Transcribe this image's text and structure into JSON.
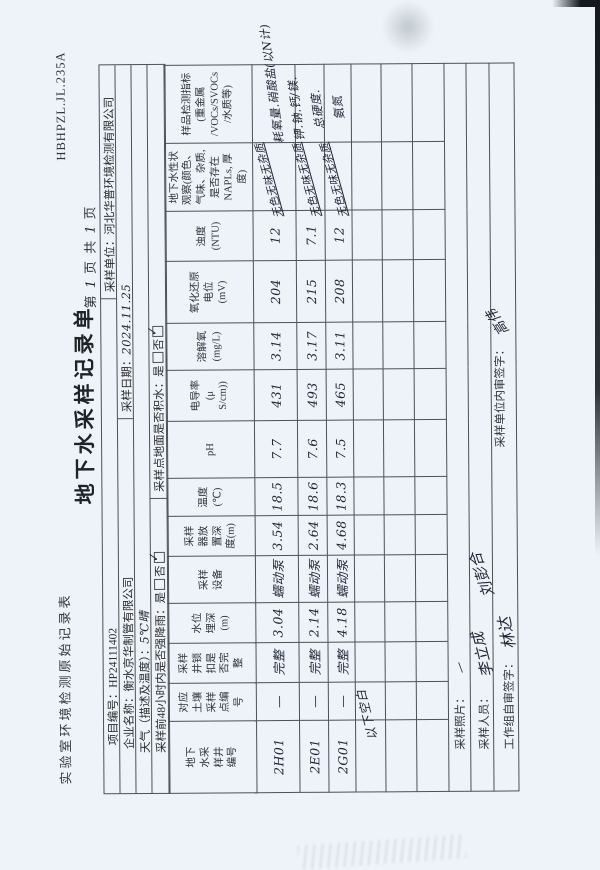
{
  "header": {
    "form_name": "实验室环境检测原始记录表",
    "doc_code": "HBHPZL.JL.235A",
    "title": "地下水采样记录单",
    "page_pre": "第",
    "page_current": "1",
    "page_mid": "页 共",
    "page_total": "1",
    "page_suf": "页"
  },
  "info": {
    "project_no_label": "项目编号：",
    "project_no": "HP24111402",
    "sampling_org_label": "采样单位：",
    "sampling_org": "河北华普环境检测有限公司",
    "company_label": "企业名称：",
    "company": "衡水京华制管有限公司",
    "date_label": "采样日期：",
    "date": "2024.11.25",
    "weather_label": "天气（描述及温度）：",
    "weather": "5℃晴",
    "rain_label": "采样前48小时内是否强降雨：",
    "ponding_label": "采样点地面是否积水：",
    "yes_label": "是",
    "no_label": "否",
    "check_mark": "✓"
  },
  "table": {
    "headers": [
      "地下\n水采\n样井\n编号",
      "对应\n土壤\n采样\n点编\n号",
      "采样\n井锁\n扣是\n否完\n整",
      "水位\n埋深\n(m)",
      "采样\n设备",
      "采样\n器放\n置深\n度(m)",
      "温度\n(℃)",
      "pH",
      "电导率\n(μ\nS/cm))",
      "溶解氧\n(mg/L)",
      "氧化还原\n电位\n(mV)",
      "浊度\n(NTU)",
      "地下水性状\n观察(颜色、\n气味、杂质,\n是否存在\nNAPLs, 厚\n度)",
      "样品检测指标\n(重金属\n/VOCs/SVOCs\n/水质等)"
    ],
    "rows": [
      [
        "2H01",
        "—",
        "完整",
        "3.04",
        "蠕动泵",
        "3.54",
        "18.5",
        "7.7",
        "431",
        "3.14",
        "204",
        "12",
        "",
        ""
      ],
      [
        "2E01",
        "—",
        "完整",
        "2.14",
        "蠕动泵",
        "2.64",
        "18.6",
        "7.6",
        "493",
        "3.17",
        "215",
        "7.1",
        "",
        ""
      ],
      [
        "2G01",
        "—",
        "完整",
        "4.18",
        "蠕动泵",
        "4.68",
        "18.3",
        "7.5",
        "465",
        "3.11",
        "208",
        "12",
        "",
        ""
      ],
      [
        "",
        "",
        "",
        "",
        "",
        "",
        "",
        "",
        "",
        "",
        "",
        "",
        "",
        ""
      ],
      [
        "",
        "",
        "",
        "",
        "",
        "",
        "",
        "",
        "",
        "",
        "",
        "",
        "",
        ""
      ],
      [
        "",
        "",
        "",
        "",
        "",
        "",
        "",
        "",
        "",
        "",
        "",
        "",
        "",
        ""
      ]
    ],
    "observations": [
      "无色无味无杂质",
      "无色无味无杂质",
      "无色无味无杂质"
    ],
    "indicator_lines": [
      "耗氧量.硝酸盐(以N计)",
      "钾.钠.钙/镁.",
      "总硬度.",
      "氨氮"
    ],
    "blank_note": "以下空白"
  },
  "footer": {
    "photo_label": "采样照片：",
    "photo_value": "—",
    "samplers_label": "采样人员：",
    "sampler_sig_1": "李立成",
    "sampler_sig_2": "刘彭合",
    "team_sign_label": "工作组自审签字：",
    "team_sig": "林达",
    "internal_sign_label": "采样单位内审签字：",
    "internal_sig": "高伟"
  }
}
